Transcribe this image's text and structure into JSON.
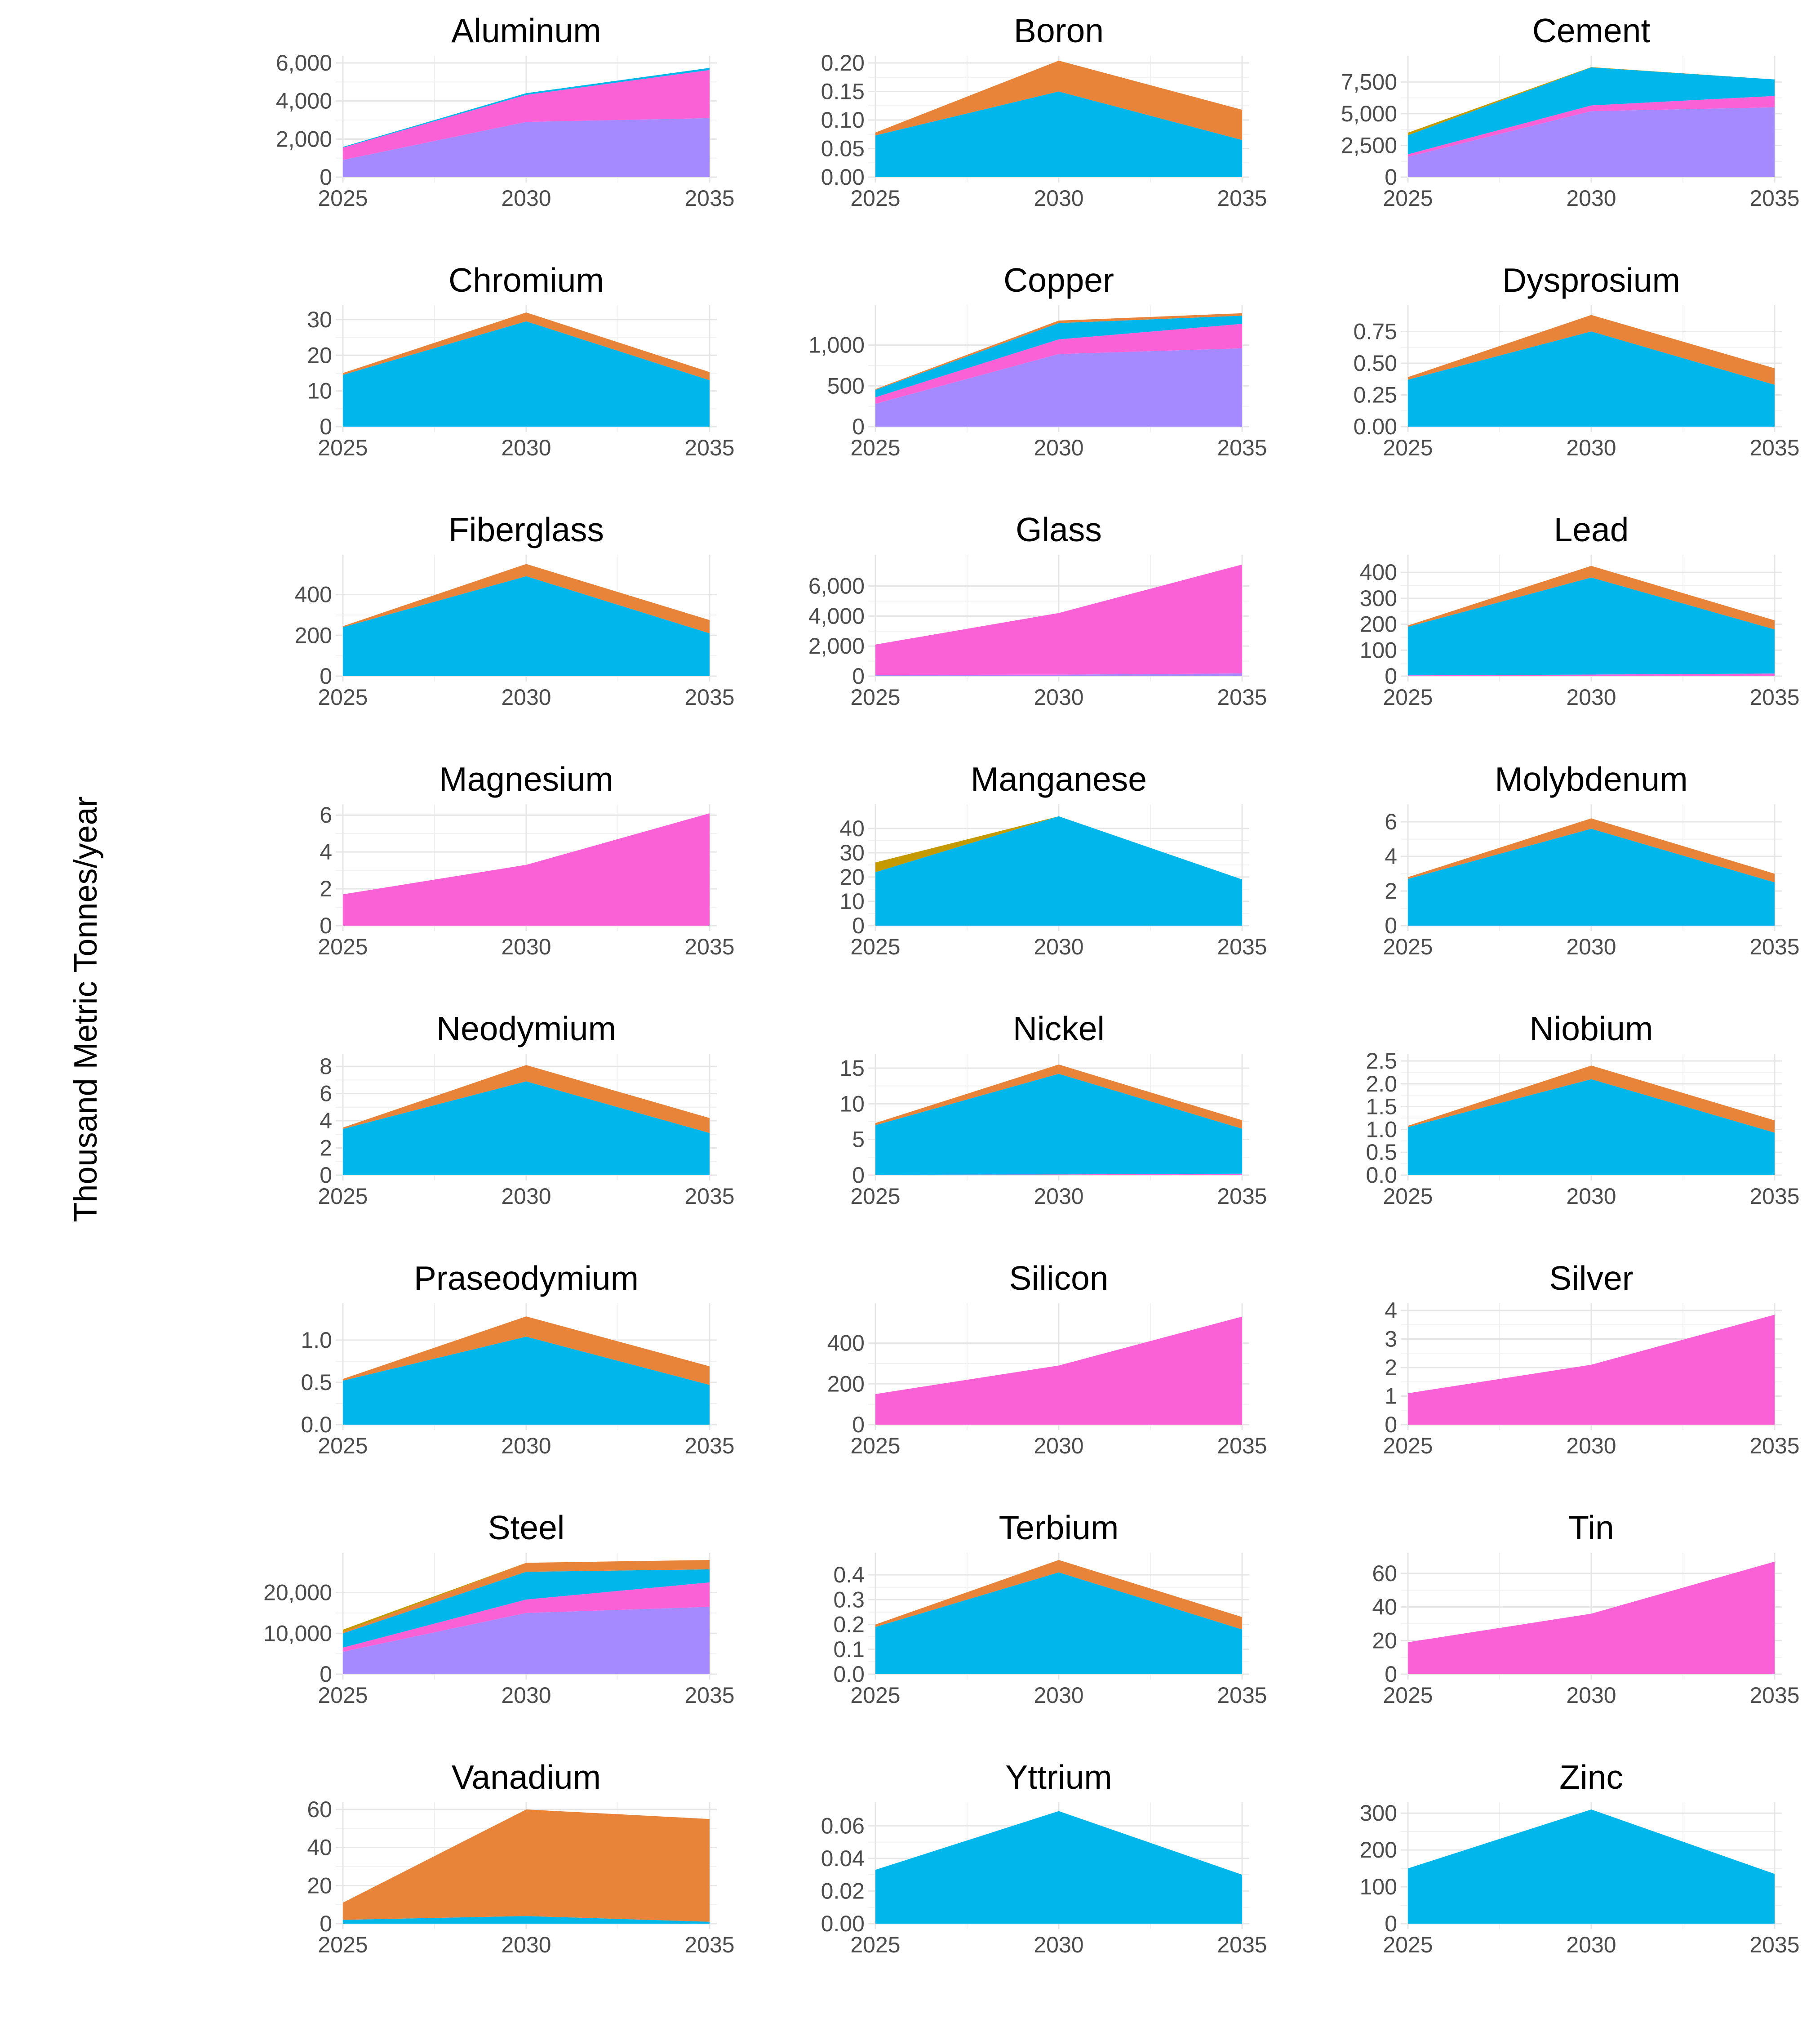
{
  "figure": {
    "ylabel": "Thousand Metric Tonnes/year"
  },
  "series_colors": {
    "purple": "#A58AFF",
    "pink": "#FB61D7",
    "blue": "#00B6EB",
    "orange": "#E8833A",
    "olive": "#C49A00"
  },
  "chart_data": [
    {
      "type": "area",
      "title": "Aluminum",
      "x": [
        2025,
        2030,
        2035
      ],
      "ylim": [
        0,
        6000
      ],
      "yticks": [
        0,
        2000,
        4000,
        6000
      ],
      "yticklabels": [
        "0",
        "2,000",
        "4,000",
        "6,000"
      ],
      "series": [
        {
          "name": "purple",
          "color": "#A58AFF",
          "values": [
            900,
            2900,
            3100
          ]
        },
        {
          "name": "pink",
          "color": "#FB61D7",
          "values": [
            650,
            1420,
            2530
          ]
        },
        {
          "name": "blue",
          "color": "#00B6EB",
          "values": [
            40,
            90,
            110
          ]
        }
      ]
    },
    {
      "type": "area",
      "title": "Boron",
      "x": [
        2025,
        2030,
        2035
      ],
      "ylim": [
        0,
        0.2
      ],
      "yticks": [
        0,
        0.05,
        0.1,
        0.15,
        0.2
      ],
      "yticklabels": [
        "0.00",
        "0.05",
        "0.10",
        "0.15",
        "0.20"
      ],
      "series": [
        {
          "name": "blue",
          "color": "#00B6EB",
          "values": [
            0.073,
            0.15,
            0.065
          ]
        },
        {
          "name": "orange",
          "color": "#E8833A",
          "values": [
            0.005,
            0.054,
            0.053
          ]
        }
      ]
    },
    {
      "type": "area",
      "title": "Cement",
      "x": [
        2025,
        2030,
        2035
      ],
      "ylim": [
        0,
        9000
      ],
      "yticks": [
        0,
        2500,
        5000,
        7500
      ],
      "yticklabels": [
        "0",
        "2,500",
        "5,000",
        "7,500"
      ],
      "series": [
        {
          "name": "purple",
          "color": "#A58AFF",
          "values": [
            1600,
            5200,
            5500
          ]
        },
        {
          "name": "pink",
          "color": "#FB61D7",
          "values": [
            200,
            450,
            900
          ]
        },
        {
          "name": "blue",
          "color": "#00B6EB",
          "values": [
            1500,
            3000,
            1300
          ]
        },
        {
          "name": "olive",
          "color": "#C49A00",
          "values": [
            200,
            20,
            0
          ]
        }
      ]
    },
    {
      "type": "area",
      "title": "Chromium",
      "x": [
        2025,
        2030,
        2035
      ],
      "ylim": [
        0,
        32
      ],
      "yticks": [
        0,
        10,
        20,
        30
      ],
      "yticklabels": [
        "0",
        "10",
        "20",
        "30"
      ],
      "series": [
        {
          "name": "blue",
          "color": "#00B6EB",
          "values": [
            14.5,
            29.5,
            13
          ]
        },
        {
          "name": "orange",
          "color": "#E8833A",
          "values": [
            0.5,
            2.5,
            2.3
          ]
        }
      ]
    },
    {
      "type": "area",
      "title": "Copper",
      "x": [
        2025,
        2030,
        2035
      ],
      "ylim": [
        0,
        1400
      ],
      "yticks": [
        0,
        500,
        1000
      ],
      "yticklabels": [
        "0",
        "500",
        "1,000"
      ],
      "series": [
        {
          "name": "purple",
          "color": "#A58AFF",
          "values": [
            280,
            890,
            960
          ]
        },
        {
          "name": "pink",
          "color": "#FB61D7",
          "values": [
            80,
            180,
            300
          ]
        },
        {
          "name": "blue",
          "color": "#00B6EB",
          "values": [
            90,
            200,
            100
          ]
        },
        {
          "name": "orange",
          "color": "#E8833A",
          "values": [
            10,
            30,
            30
          ]
        }
      ]
    },
    {
      "type": "area",
      "title": "Dysprosium",
      "x": [
        2025,
        2030,
        2035
      ],
      "ylim": [
        0,
        0.9
      ],
      "yticks": [
        0,
        0.25,
        0.5,
        0.75
      ],
      "yticklabels": [
        "0.00",
        "0.25",
        "0.50",
        "0.75"
      ],
      "series": [
        {
          "name": "blue",
          "color": "#00B6EB",
          "values": [
            0.37,
            0.75,
            0.33
          ]
        },
        {
          "name": "orange",
          "color": "#E8833A",
          "values": [
            0.02,
            0.13,
            0.13
          ]
        }
      ]
    },
    {
      "type": "area",
      "title": "Fiberglass",
      "x": [
        2025,
        2030,
        2035
      ],
      "ylim": [
        0,
        560
      ],
      "yticks": [
        0,
        200,
        400
      ],
      "yticklabels": [
        "0",
        "200",
        "400"
      ],
      "series": [
        {
          "name": "blue",
          "color": "#00B6EB",
          "values": [
            240,
            490,
            210
          ]
        },
        {
          "name": "orange",
          "color": "#E8833A",
          "values": [
            5,
            60,
            65
          ]
        }
      ]
    },
    {
      "type": "area",
      "title": "Glass",
      "x": [
        2025,
        2030,
        2035
      ],
      "ylim": [
        0,
        7600
      ],
      "yticks": [
        0,
        2000,
        4000,
        6000
      ],
      "yticklabels": [
        "0",
        "2,000",
        "4,000",
        "6,000"
      ],
      "series": [
        {
          "name": "purple",
          "color": "#A58AFF",
          "values": [
            80,
            100,
            180
          ]
        },
        {
          "name": "pink",
          "color": "#FB61D7",
          "values": [
            2020,
            4100,
            7250
          ]
        }
      ]
    },
    {
      "type": "area",
      "title": "Lead",
      "x": [
        2025,
        2030,
        2035
      ],
      "ylim": [
        0,
        440
      ],
      "yticks": [
        0,
        100,
        200,
        300,
        400
      ],
      "yticklabels": [
        "0",
        "100",
        "200",
        "300",
        "400"
      ],
      "series": [
        {
          "name": "pink",
          "color": "#FB61D7",
          "values": [
            3,
            6,
            10
          ]
        },
        {
          "name": "blue",
          "color": "#00B6EB",
          "values": [
            187,
            374,
            170
          ]
        },
        {
          "name": "orange",
          "color": "#E8833A",
          "values": [
            5,
            45,
            35
          ]
        }
      ]
    },
    {
      "type": "area",
      "title": "Magnesium",
      "x": [
        2025,
        2030,
        2035
      ],
      "ylim": [
        0,
        6.2
      ],
      "yticks": [
        0,
        2,
        4,
        6
      ],
      "yticklabels": [
        "0",
        "2",
        "4",
        "6"
      ],
      "series": [
        {
          "name": "pink",
          "color": "#FB61D7",
          "values": [
            1.7,
            3.3,
            6.1
          ]
        }
      ]
    },
    {
      "type": "area",
      "title": "Manganese",
      "x": [
        2025,
        2030,
        2035
      ],
      "ylim": [
        0,
        47
      ],
      "yticks": [
        0,
        10,
        20,
        30,
        40
      ],
      "yticklabels": [
        "0",
        "10",
        "20",
        "30",
        "40"
      ],
      "series": [
        {
          "name": "blue",
          "color": "#00B6EB",
          "values": [
            22,
            45,
            19
          ]
        },
        {
          "name": "olive",
          "color": "#C49A00",
          "values": [
            4,
            0,
            0
          ]
        }
      ]
    },
    {
      "type": "area",
      "title": "Molybdenum",
      "x": [
        2025,
        2030,
        2035
      ],
      "ylim": [
        0,
        6.6
      ],
      "yticks": [
        0,
        2,
        4,
        6
      ],
      "yticklabels": [
        "0",
        "2",
        "4",
        "6"
      ],
      "series": [
        {
          "name": "blue",
          "color": "#00B6EB",
          "values": [
            2.7,
            5.6,
            2.5
          ]
        },
        {
          "name": "orange",
          "color": "#E8833A",
          "values": [
            0.1,
            0.6,
            0.5
          ]
        }
      ]
    },
    {
      "type": "area",
      "title": "Neodymium",
      "x": [
        2025,
        2030,
        2035
      ],
      "ylim": [
        0,
        8.4
      ],
      "yticks": [
        0,
        2,
        4,
        6,
        8
      ],
      "yticklabels": [
        "0",
        "2",
        "4",
        "6",
        "8"
      ],
      "series": [
        {
          "name": "blue",
          "color": "#00B6EB",
          "values": [
            3.4,
            6.9,
            3.1
          ]
        },
        {
          "name": "orange",
          "color": "#E8833A",
          "values": [
            0.1,
            1.2,
            1.1
          ]
        }
      ]
    },
    {
      "type": "area",
      "title": "Nickel",
      "x": [
        2025,
        2030,
        2035
      ],
      "ylim": [
        0,
        16
      ],
      "yticks": [
        0,
        5,
        10,
        15
      ],
      "yticklabels": [
        "0",
        "5",
        "10",
        "15"
      ],
      "series": [
        {
          "name": "pink",
          "color": "#FB61D7",
          "values": [
            0.05,
            0.1,
            0.2
          ]
        },
        {
          "name": "blue",
          "color": "#00B6EB",
          "values": [
            6.95,
            14.1,
            6.3
          ]
        },
        {
          "name": "orange",
          "color": "#E8833A",
          "values": [
            0.3,
            1.3,
            1.2
          ]
        }
      ]
    },
    {
      "type": "area",
      "title": "Niobium",
      "x": [
        2025,
        2030,
        2035
      ],
      "ylim": [
        0,
        2.5
      ],
      "yticks": [
        0,
        0.5,
        1,
        1.5,
        2,
        2.5
      ],
      "yticklabels": [
        "0.0",
        "0.5",
        "1.0",
        "1.5",
        "2.0",
        "2.5"
      ],
      "series": [
        {
          "name": "blue",
          "color": "#00B6EB",
          "values": [
            1.05,
            2.1,
            0.93
          ]
        },
        {
          "name": "orange",
          "color": "#E8833A",
          "values": [
            0.03,
            0.3,
            0.27
          ]
        }
      ]
    },
    {
      "type": "area",
      "title": "Praseodymium",
      "x": [
        2025,
        2030,
        2035
      ],
      "ylim": [
        0,
        1.35
      ],
      "yticks": [
        0,
        0.5,
        1
      ],
      "yticklabels": [
        "0.0",
        "0.5",
        "1.0"
      ],
      "series": [
        {
          "name": "blue",
          "color": "#00B6EB",
          "values": [
            0.52,
            1.04,
            0.47
          ]
        },
        {
          "name": "orange",
          "color": "#E8833A",
          "values": [
            0.02,
            0.24,
            0.22
          ]
        }
      ]
    },
    {
      "type": "area",
      "title": "Silicon",
      "x": [
        2025,
        2030,
        2035
      ],
      "ylim": [
        0,
        560
      ],
      "yticks": [
        0,
        200,
        400
      ],
      "yticklabels": [
        "0",
        "200",
        "400"
      ],
      "series": [
        {
          "name": "pink",
          "color": "#FB61D7",
          "values": [
            150,
            290,
            530
          ]
        }
      ]
    },
    {
      "type": "area",
      "title": "Silver",
      "x": [
        2025,
        2030,
        2035
      ],
      "ylim": [
        0,
        4
      ],
      "yticks": [
        0,
        1,
        2,
        3,
        4
      ],
      "yticklabels": [
        "0",
        "1",
        "2",
        "3",
        "4"
      ],
      "series": [
        {
          "name": "pink",
          "color": "#FB61D7",
          "values": [
            1.1,
            2.1,
            3.85
          ]
        }
      ]
    },
    {
      "type": "area",
      "title": "Steel",
      "x": [
        2025,
        2030,
        2035
      ],
      "ylim": [
        0,
        28000
      ],
      "yticks": [
        0,
        10000,
        20000
      ],
      "yticklabels": [
        "0",
        "10,000",
        "20,000"
      ],
      "series": [
        {
          "name": "purple",
          "color": "#A58AFF",
          "values": [
            5500,
            15000,
            16500
          ]
        },
        {
          "name": "pink",
          "color": "#FB61D7",
          "values": [
            1000,
            3300,
            6000
          ]
        },
        {
          "name": "blue",
          "color": "#00B6EB",
          "values": [
            3500,
            6800,
            3200
          ]
        },
        {
          "name": "orange",
          "color": "#E8833A",
          "values": [
            300,
            2200,
            2300
          ]
        },
        {
          "name": "olive",
          "color": "#C49A00",
          "values": [
            600,
            0,
            0
          ]
        }
      ]
    },
    {
      "type": "area",
      "title": "Terbium",
      "x": [
        2025,
        2030,
        2035
      ],
      "ylim": [
        0,
        0.46
      ],
      "yticks": [
        0,
        0.1,
        0.2,
        0.3,
        0.4
      ],
      "yticklabels": [
        "0.0",
        "0.1",
        "0.2",
        "0.3",
        "0.4"
      ],
      "series": [
        {
          "name": "blue",
          "color": "#00B6EB",
          "values": [
            0.19,
            0.41,
            0.18
          ]
        },
        {
          "name": "orange",
          "color": "#E8833A",
          "values": [
            0.01,
            0.05,
            0.05
          ]
        }
      ]
    },
    {
      "type": "area",
      "title": "Tin",
      "x": [
        2025,
        2030,
        2035
      ],
      "ylim": [
        0,
        68
      ],
      "yticks": [
        0,
        20,
        40,
        60
      ],
      "yticklabels": [
        "0",
        "20",
        "40",
        "60"
      ],
      "series": [
        {
          "name": "pink",
          "color": "#FB61D7",
          "values": [
            19,
            36,
            67
          ]
        }
      ]
    },
    {
      "type": "area",
      "title": "Vanadium",
      "x": [
        2025,
        2030,
        2035
      ],
      "ylim": [
        0,
        60
      ],
      "yticks": [
        0,
        20,
        40,
        60
      ],
      "yticklabels": [
        "0",
        "20",
        "40",
        "60"
      ],
      "series": [
        {
          "name": "blue",
          "color": "#00B6EB",
          "values": [
            2,
            4,
            1
          ]
        },
        {
          "name": "orange",
          "color": "#E8833A",
          "values": [
            9,
            56,
            54
          ]
        }
      ]
    },
    {
      "type": "area",
      "title": "Yttrium",
      "x": [
        2025,
        2030,
        2035
      ],
      "ylim": [
        0,
        0.07
      ],
      "yticks": [
        0,
        0.02,
        0.04,
        0.06
      ],
      "yticklabels": [
        "0.00",
        "0.02",
        "0.04",
        "0.06"
      ],
      "series": [
        {
          "name": "blue",
          "color": "#00B6EB",
          "values": [
            0.033,
            0.069,
            0.03
          ]
        }
      ]
    },
    {
      "type": "area",
      "title": "Zinc",
      "x": [
        2025,
        2030,
        2035
      ],
      "ylim": [
        0,
        310
      ],
      "yticks": [
        0,
        100,
        200,
        300
      ],
      "yticklabels": [
        "0",
        "100",
        "200",
        "300"
      ],
      "series": [
        {
          "name": "blue",
          "color": "#00B6EB",
          "values": [
            150,
            310,
            135
          ]
        }
      ]
    }
  ]
}
